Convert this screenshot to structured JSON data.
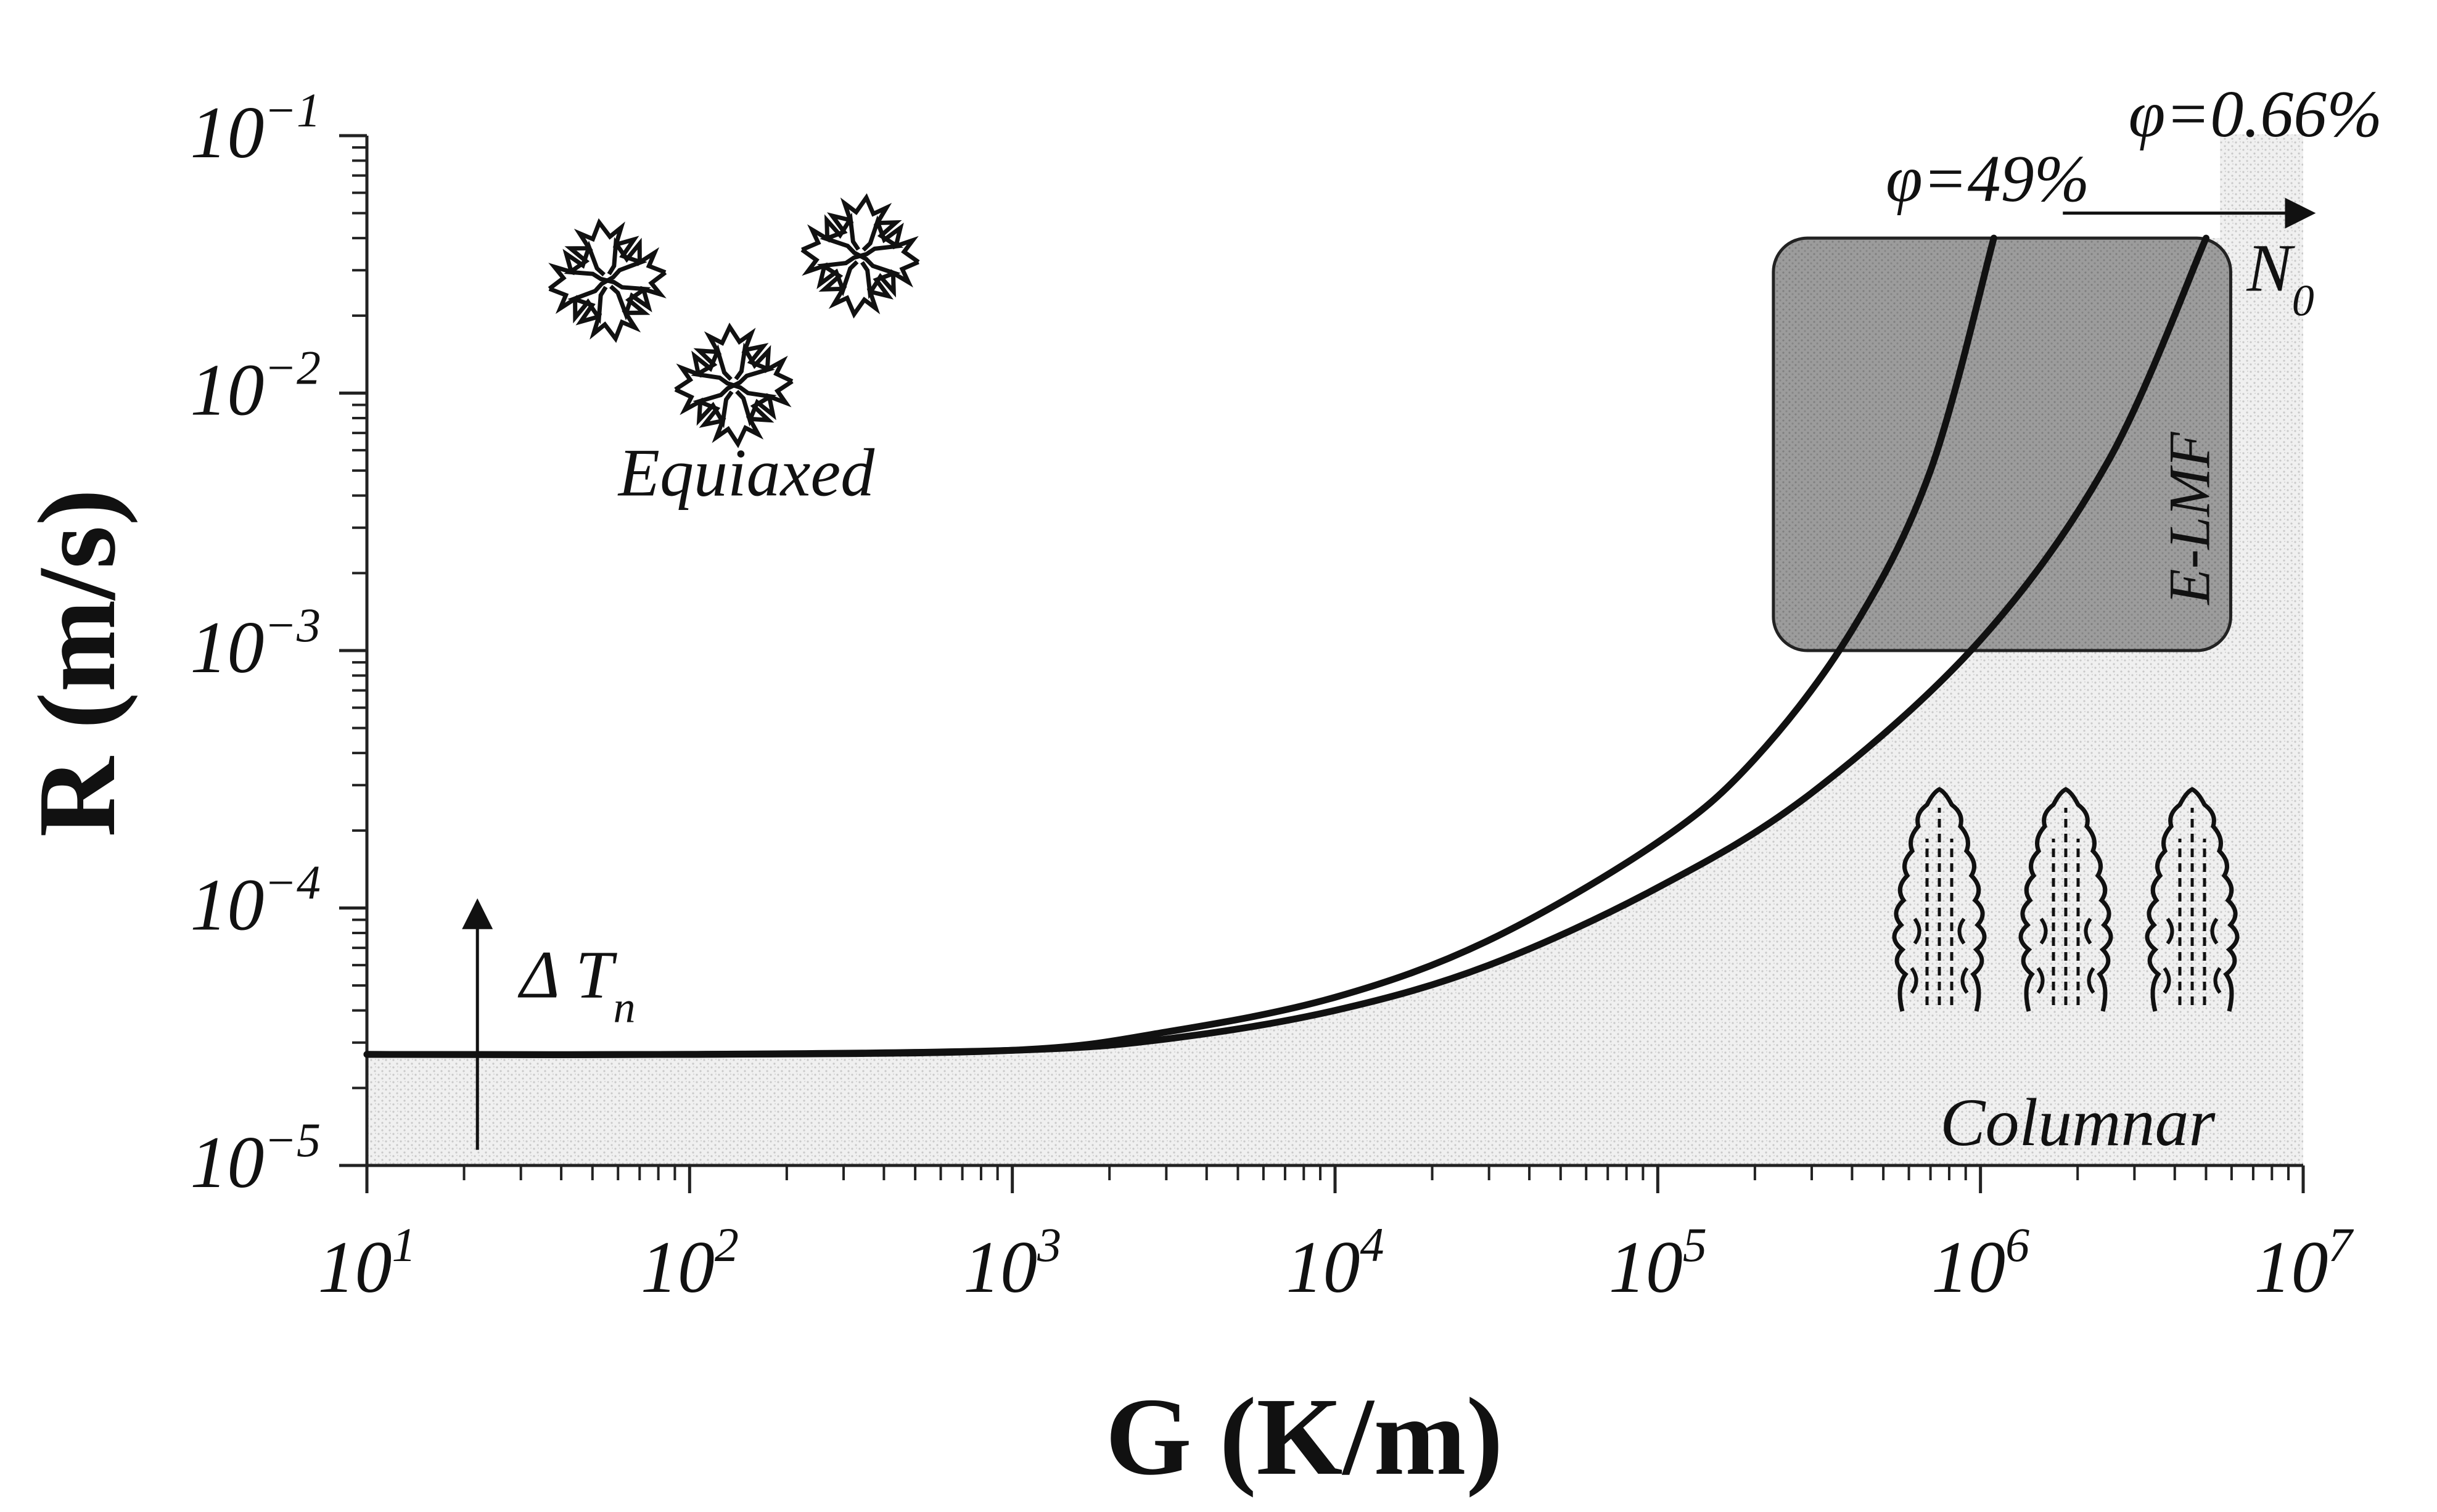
{
  "chart_data": {
    "type": "line",
    "title": "",
    "xlabel": "G (K/m)",
    "ylabel": "R (m/s)",
    "x_scale": "log",
    "y_scale": "log",
    "xlim": [
      10,
      10000000
    ],
    "ylim": [
      1e-05,
      0.1
    ],
    "x_ticks": [
      {
        "value": 10,
        "base": "10",
        "exp": "1"
      },
      {
        "value": 100,
        "base": "10",
        "exp": "2"
      },
      {
        "value": 1000,
        "base": "10",
        "exp": "3"
      },
      {
        "value": 10000,
        "base": "10",
        "exp": "4"
      },
      {
        "value": 100000,
        "base": "10",
        "exp": "5"
      },
      {
        "value": 1000000,
        "base": "10",
        "exp": "6"
      },
      {
        "value": 10000000,
        "base": "10",
        "exp": "7"
      }
    ],
    "y_ticks": [
      {
        "value": 1e-05,
        "base": "10",
        "exp": "−5"
      },
      {
        "value": 0.0001,
        "base": "10",
        "exp": "−4"
      },
      {
        "value": 0.001,
        "base": "10",
        "exp": "−3"
      },
      {
        "value": 0.01,
        "base": "10",
        "exp": "−2"
      },
      {
        "value": 0.1,
        "base": "10",
        "exp": "−1"
      }
    ],
    "grid": false,
    "series": [
      {
        "name": "φ=49%",
        "x": [
          10,
          100,
          1000,
          3000,
          10000,
          30000,
          100000,
          200000,
          400000,
          700000,
          1100000
        ],
        "y": [
          2.7e-05,
          2.7e-05,
          2.8e-05,
          3.3e-05,
          4.5e-05,
          7.5e-05,
          0.00018,
          0.00038,
          0.0012,
          0.005,
          0.04
        ]
      },
      {
        "name": "φ=0.66%",
        "x": [
          10,
          100,
          1000,
          3000,
          10000,
          30000,
          100000,
          300000,
          1000000,
          2500000,
          5000000
        ],
        "y": [
          2.7e-05,
          2.7e-05,
          2.8e-05,
          3.1e-05,
          4e-05,
          6e-05,
          0.00012,
          0.00028,
          0.0011,
          0.0055,
          0.04
        ]
      }
    ],
    "regions": [
      {
        "label": "E-LMF",
        "x_range": [
          200000,
          5000000
        ],
        "y_range": [
          0.001,
          0.04
        ]
      }
    ],
    "annotations": [
      {
        "text": "Equiaxed",
        "x": 150,
        "y": 0.004
      },
      {
        "text": "Columnar",
        "x": 2000000,
        "y": 1.2e-05
      },
      {
        "text": "Δ T",
        "sub": "n",
        "x": 45,
        "y": 4.5e-05
      },
      {
        "text": "N",
        "sub": "0",
        "x": 8500000,
        "y": 0.025
      }
    ]
  }
}
